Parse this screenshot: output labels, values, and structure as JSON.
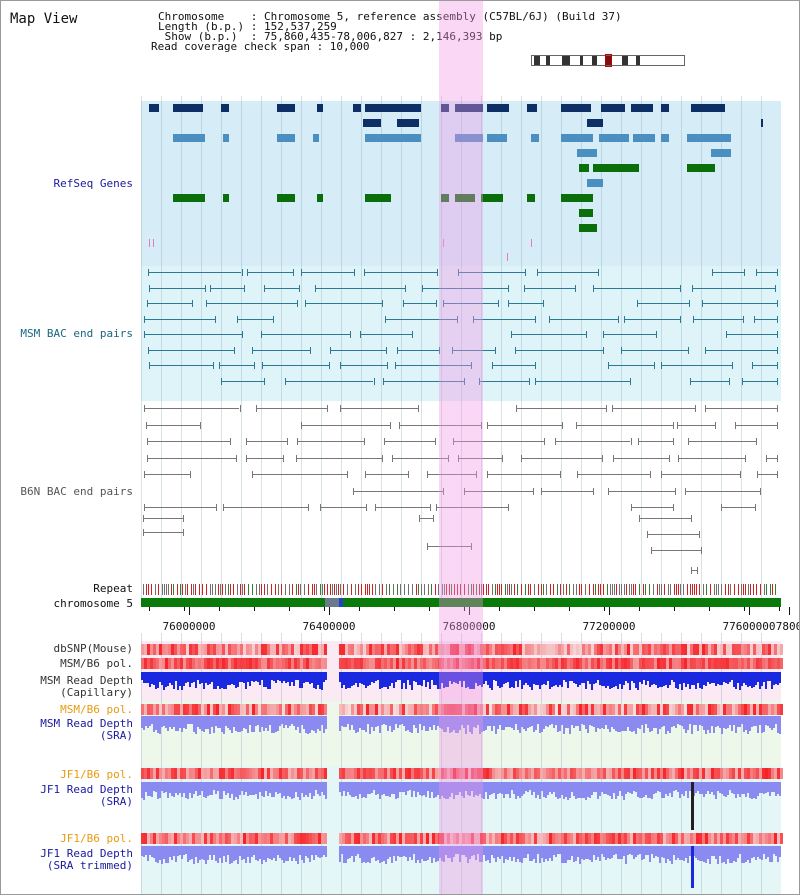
{
  "header": {
    "map_title": "Map View",
    "line1": "Chromosome    : Chromosome 5, reference assembly (C57BL/6J) (Build 37)",
    "line2": "Length (b.p.) : 152,537,259",
    "line3": " Show (b.p.)  : 75,860,435-78,006,827 : 2,146,393 bp",
    "line4": "Read coverage check span : 10,000"
  },
  "colors": {
    "refseq_bg": "#d6edf8",
    "msm_bac_bg": "#dff4f8",
    "b6n_bac_bg": "#ffffff",
    "highlight": "#f3c6ee",
    "refseq_dark": "#0e2f66",
    "refseq_mid": "#4a8fbf",
    "refseq_green": "#0a6e0a",
    "msm_bac": "#2a7a96",
    "b6n_bac": "#777777",
    "chromosome_bar": "#0a7a0a",
    "heat_red": "#e83030",
    "depth_blue": "#1a28e0",
    "depth_light": "#8a8af0"
  },
  "tracks": {
    "refseq_label": "RefSeq Genes",
    "msm_bac_label": "MSM BAC end pairs",
    "b6n_bac_label": "B6N BAC end pairs",
    "repeat_label": "Repeat",
    "chromosome_label": "chromosome 5",
    "dbsnp_label": "dbSNP(Mouse)",
    "msm_b6_pol_label": "MSM/B6 pol.",
    "msm_depth_cap_label1": "MSM Read Depth",
    "msm_depth_cap_label2": "(Capillary)",
    "msm_b6_pol2_label": "MSM/B6 pol.",
    "msm_depth_sra_label1": "MSM Read Depth",
    "msm_depth_sra_label2": "(SRA)",
    "jf1_pol_label": "JF1/B6 pol.",
    "jf1_depth_sra_label1": "JF1 Read Depth",
    "jf1_depth_sra_label2": "(SRA)",
    "jf1_pol2_label": "JF1/B6 pol.",
    "jf1_depth_trim_label1": "JF1 Read Depth",
    "jf1_depth_trim_label2": "(SRA trimmed)"
  },
  "axis": {
    "ticks": [
      "76000000",
      "76400000",
      "76800000",
      "77200000",
      "77600000",
      "7800"
    ]
  }
}
